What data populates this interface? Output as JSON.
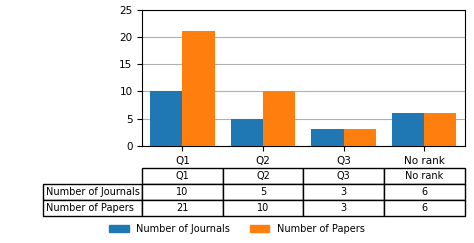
{
  "chart_data": {
    "type": "bar",
    "categories": [
      "Q1",
      "Q2",
      "Q3",
      "No rank"
    ],
    "series": [
      {
        "name": "Number of Journals",
        "values": [
          10,
          5,
          3,
          6
        ]
      },
      {
        "name": "Number of Papers",
        "values": [
          21,
          10,
          3,
          6
        ]
      }
    ],
    "ylim": [
      0,
      25
    ],
    "yticks": [
      0,
      5,
      10,
      15,
      20,
      25
    ],
    "grid": true,
    "legend": "lower center"
  }
}
